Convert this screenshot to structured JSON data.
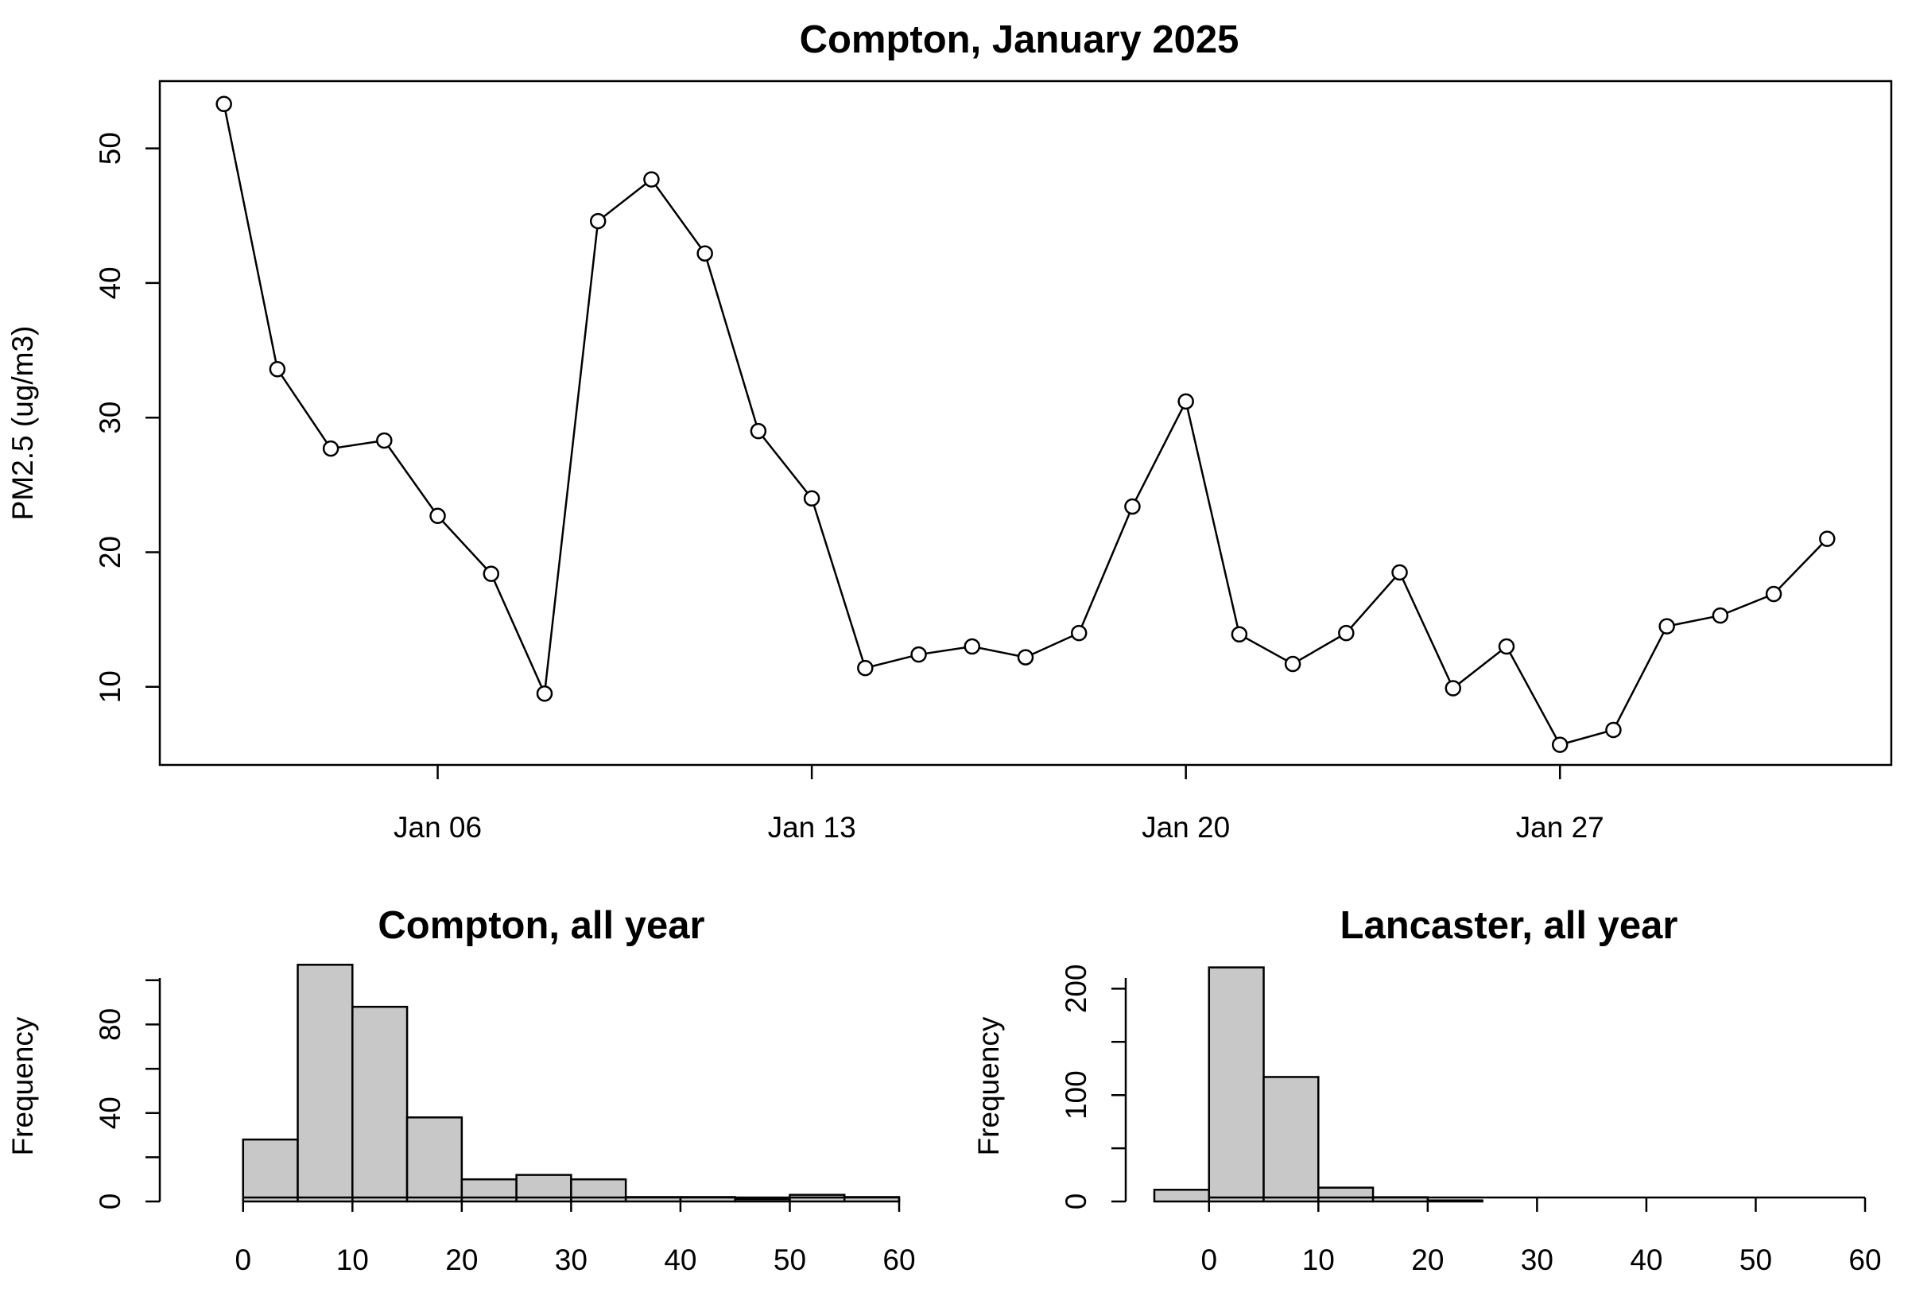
{
  "chart_data": [
    {
      "type": "line",
      "title": "Compton, January 2025",
      "xlabel": "",
      "ylabel": "PM2.5 (ug/m3)",
      "x": [
        "2025-01-02",
        "2025-01-03",
        "2025-01-04",
        "2025-01-05",
        "2025-01-06",
        "2025-01-07",
        "2025-01-08",
        "2025-01-09",
        "2025-01-10",
        "2025-01-11",
        "2025-01-12",
        "2025-01-13",
        "2025-01-14",
        "2025-01-15",
        "2025-01-16",
        "2025-01-17",
        "2025-01-18",
        "2025-01-19",
        "2025-01-20",
        "2025-01-21",
        "2025-01-22",
        "2025-01-23",
        "2025-01-24",
        "2025-01-25",
        "2025-01-26",
        "2025-01-27",
        "2025-01-28",
        "2025-01-29",
        "2025-01-30",
        "2025-01-31",
        "2025-02-01"
      ],
      "values": [
        53.3,
        33.6,
        27.7,
        28.3,
        22.7,
        18.4,
        9.5,
        44.6,
        47.7,
        42.2,
        29.0,
        24.0,
        11.4,
        12.4,
        13.0,
        12.2,
        14.0,
        23.4,
        31.2,
        13.9,
        11.7,
        14.0,
        18.5,
        9.9,
        13.0,
        5.7,
        6.8,
        14.5,
        15.3,
        16.9,
        21.0
      ],
      "xticks": [
        {
          "date": "2025-01-06",
          "label": "Jan 06"
        },
        {
          "date": "2025-01-13",
          "label": "Jan 13"
        },
        {
          "date": "2025-01-20",
          "label": "Jan 20"
        },
        {
          "date": "2025-01-27",
          "label": "Jan 27"
        }
      ],
      "yticks": [
        10,
        20,
        30,
        40,
        50
      ],
      "ylim": [
        4.2,
        55.0
      ],
      "markers": "open-circle",
      "grid": false
    },
    {
      "type": "bar",
      "title": "Compton, all year",
      "xlabel": "",
      "ylabel": "Frequency",
      "bins": [
        [
          0,
          5
        ],
        [
          5,
          10
        ],
        [
          10,
          15
        ],
        [
          15,
          20
        ],
        [
          20,
          25
        ],
        [
          25,
          30
        ],
        [
          30,
          35
        ],
        [
          35,
          40
        ],
        [
          40,
          45
        ],
        [
          45,
          50
        ],
        [
          50,
          55
        ],
        [
          55,
          60
        ]
      ],
      "values": [
        28,
        107,
        88,
        38,
        10,
        12,
        10,
        2,
        2,
        1,
        3,
        2
      ],
      "xticks": [
        0,
        10,
        20,
        30,
        40,
        50,
        60
      ],
      "yticks": [
        0,
        40,
        80
      ],
      "xlim": [
        -5,
        60
      ],
      "ylim": [
        0,
        101
      ],
      "grid": false
    },
    {
      "type": "bar",
      "title": "Lancaster, all year",
      "xlabel": "",
      "ylabel": "Frequency",
      "bins": [
        [
          -5,
          0
        ],
        [
          0,
          5
        ],
        [
          5,
          10
        ],
        [
          10,
          15
        ],
        [
          15,
          20
        ],
        [
          20,
          25
        ],
        [
          25,
          30
        ],
        [
          30,
          35
        ],
        [
          35,
          40
        ],
        [
          40,
          45
        ],
        [
          45,
          50
        ],
        [
          50,
          55
        ],
        [
          55,
          60
        ]
      ],
      "values": [
        11,
        220,
        117,
        13,
        4,
        1,
        0,
        0,
        0,
        0,
        0,
        0,
        0
      ],
      "xticks": [
        0,
        10,
        20,
        30,
        40,
        50,
        60
      ],
      "yticks": [
        0,
        100,
        200
      ],
      "xlim": [
        -5,
        60
      ],
      "ylim": [
        0,
        210
      ],
      "grid": false
    }
  ]
}
